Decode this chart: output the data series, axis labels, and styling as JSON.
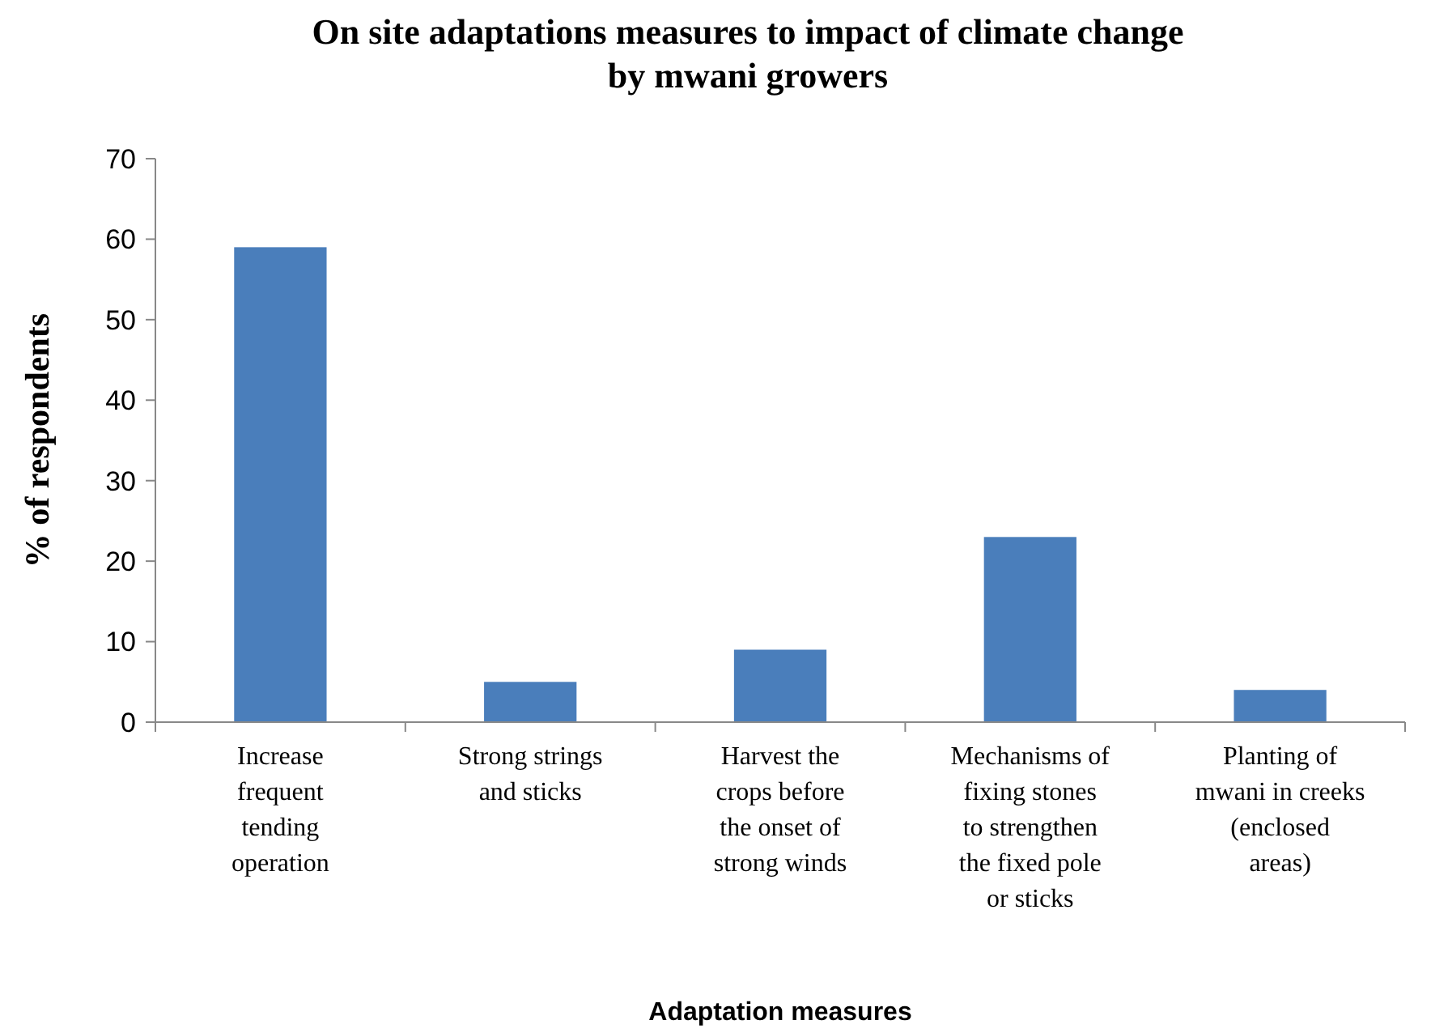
{
  "chart_data": {
    "type": "bar",
    "title": "On site  adaptations measures to impact of climate change\nby mwani growers",
    "xlabel": "Adaptation measures",
    "ylabel": "% of respondents",
    "categories": [
      "Increase frequent tending operation",
      "Strong strings and sticks",
      "Harvest the crops before the onset of strong winds",
      "Mechanisms of fixing stones to strengthen the fixed pole or sticks",
      "Planting of mwani in creeks (enclosed areas)"
    ],
    "values": [
      59,
      5,
      9,
      23,
      4
    ],
    "color": "#4a7ebb",
    "ylim": [
      0,
      70
    ],
    "yticks": [
      0,
      10,
      20,
      30,
      40,
      50,
      60,
      70
    ],
    "grid": false
  }
}
